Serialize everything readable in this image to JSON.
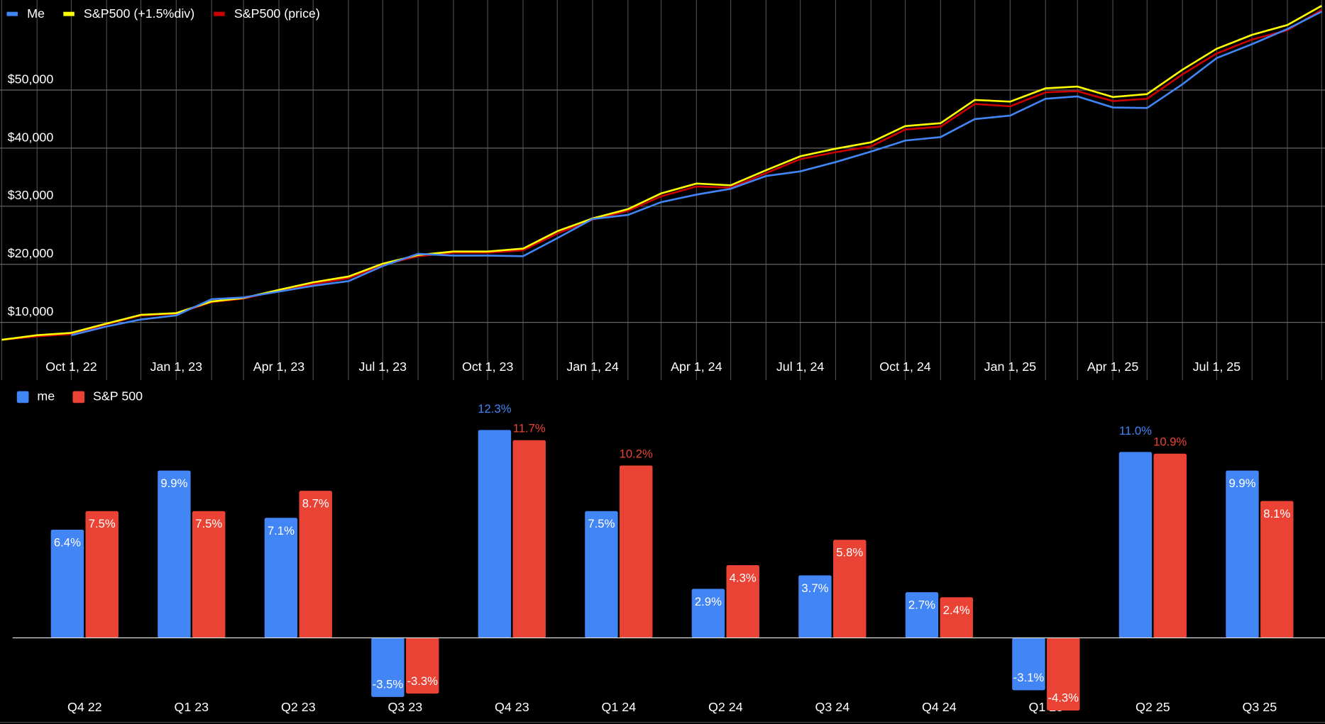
{
  "chart_data": [
    {
      "type": "line",
      "legend": "top-left",
      "x": [
        "2022-08-01",
        "2022-09-01",
        "2022-10-01",
        "2022-11-01",
        "2022-12-01",
        "2023-01-01",
        "2023-02-01",
        "2023-03-01",
        "2023-04-01",
        "2023-05-01",
        "2023-06-01",
        "2023-07-01",
        "2023-08-01",
        "2023-09-01",
        "2023-10-01",
        "2023-11-01",
        "2023-12-01",
        "2024-01-01",
        "2024-02-01",
        "2024-03-01",
        "2024-04-01",
        "2024-05-01",
        "2024-06-01",
        "2024-07-01",
        "2024-08-01",
        "2024-09-01",
        "2024-10-01",
        "2024-11-01",
        "2024-12-01",
        "2025-01-01",
        "2025-02-01",
        "2025-03-01",
        "2025-04-01",
        "2025-05-01",
        "2025-06-01",
        "2025-07-01",
        "2025-08-01",
        "2025-09-01",
        "2025-10-01"
      ],
      "series": [
        {
          "name": "Me",
          "color": "#4285f4",
          "values": [
            null,
            null,
            7800,
            9300,
            10500,
            11200,
            14000,
            14300,
            15300,
            16300,
            17100,
            19700,
            21800,
            21500,
            21500,
            21400,
            24500,
            27800,
            28500,
            30700,
            32000,
            33000,
            35200,
            36000,
            37600,
            39400,
            41300,
            41900,
            45000,
            45600,
            48500,
            48900,
            47000,
            46900,
            51000,
            55500,
            57900,
            60500,
            63500
          ]
        },
        {
          "name": "S&P500 (+1.5%div)",
          "color": "#ffff00",
          "values": [
            7000,
            7800,
            8200,
            9800,
            11300,
            11600,
            13600,
            14200,
            15600,
            16900,
            17900,
            20100,
            21600,
            22200,
            22200,
            22700,
            25700,
            27900,
            29500,
            32200,
            33900,
            33600,
            36200,
            38600,
            39900,
            41000,
            43800,
            44300,
            48300,
            48000,
            50300,
            50600,
            48800,
            49300,
            53500,
            57100,
            59500,
            61200,
            64500
          ]
        },
        {
          "name": "S&P500 (price)",
          "color": "#cc0000",
          "values": [
            7000,
            7600,
            8000,
            9700,
            11200,
            11500,
            13500,
            14100,
            15500,
            16600,
            17600,
            19900,
            21400,
            22000,
            22000,
            22400,
            25300,
            27700,
            29200,
            31700,
            33400,
            33200,
            35700,
            38100,
            39300,
            40300,
            43200,
            43700,
            47600,
            47200,
            49600,
            49800,
            48100,
            48500,
            52700,
            56300,
            58700,
            60300,
            63800
          ]
        }
      ],
      "xlim": [
        "2022-08-01",
        "2025-10-01"
      ],
      "xticks": [
        {
          "value": "2022-10-01",
          "label": "Oct 1, 22"
        },
        {
          "value": "2023-01-01",
          "label": "Jan 1, 23"
        },
        {
          "value": "2023-04-01",
          "label": "Apr 1, 23"
        },
        {
          "value": "2023-07-01",
          "label": "Jul 1, 23"
        },
        {
          "value": "2023-10-01",
          "label": "Oct 1, 23"
        },
        {
          "value": "2024-01-01",
          "label": "Jan 1, 24"
        },
        {
          "value": "2024-04-01",
          "label": "Apr 1, 24"
        },
        {
          "value": "2024-07-01",
          "label": "Jul 1, 24"
        },
        {
          "value": "2024-10-01",
          "label": "Oct 1, 24"
        },
        {
          "value": "2025-01-01",
          "label": "Jan 1, 25"
        },
        {
          "value": "2025-04-01",
          "label": "Apr 1, 25"
        },
        {
          "value": "2025-07-01",
          "label": "Jul 1, 25"
        }
      ],
      "ylim": [
        5000,
        65500
      ],
      "yticks": [
        {
          "value": 10000,
          "label": "$10,000"
        },
        {
          "value": 20000,
          "label": "$20,000"
        },
        {
          "value": 30000,
          "label": "$30,000"
        },
        {
          "value": 40000,
          "label": "$40,000"
        },
        {
          "value": 50000,
          "label": "$50,000"
        }
      ],
      "grid": true
    },
    {
      "type": "bar",
      "legend": "top-left",
      "categories": [
        "Q4 22",
        "Q1 23",
        "Q2 23",
        "Q3 23",
        "Q4 23",
        "Q1 24",
        "Q2 24",
        "Q3 24",
        "Q4 24",
        "Q1 25",
        "Q2 25",
        "Q3 25"
      ],
      "series": [
        {
          "name": "me",
          "color": "#4285f4",
          "values": [
            6.4,
            9.9,
            7.1,
            -3.5,
            12.3,
            7.5,
            2.9,
            3.7,
            2.7,
            -3.1,
            11.0,
            9.9
          ],
          "value_labels": [
            "6.4%",
            "9.9%",
            "7.1%",
            "-3.5%",
            "12.3%",
            "7.5%",
            "2.9%",
            "3.7%",
            "2.7%",
            "-3.1%",
            "11.0%",
            "9.9%"
          ]
        },
        {
          "name": "S&P 500",
          "color": "#ea4335",
          "values": [
            7.5,
            7.5,
            8.7,
            -3.3,
            11.7,
            10.2,
            4.3,
            5.8,
            2.4,
            -4.3,
            10.9,
            8.1
          ],
          "value_labels": [
            "7.5%",
            "7.5%",
            "8.7%",
            "-3.3%",
            "11.7%",
            "10.2%",
            "4.3%",
            "5.8%",
            "2.4%",
            "-4.3%",
            "10.9%",
            "8.1%"
          ]
        }
      ],
      "ylim": [
        -5,
        15
      ]
    }
  ]
}
